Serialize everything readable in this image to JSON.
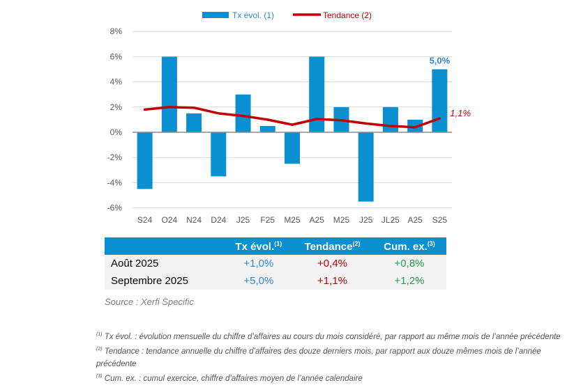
{
  "chart_data": {
    "type": "bar+line",
    "categories": [
      "S24",
      "O24",
      "N24",
      "D24",
      "J25",
      "F25",
      "M25",
      "A25",
      "M25",
      "J25",
      "JL25",
      "A25",
      "S25"
    ],
    "series": [
      {
        "name": "Tx évol. (1)",
        "type": "bar",
        "color": "#0a8fd0",
        "values": [
          -4.5,
          6,
          1.5,
          -3.5,
          3,
          0.5,
          -2.5,
          6,
          2,
          -5.5,
          2,
          1,
          5
        ]
      },
      {
        "name": "Tendance (2)",
        "type": "line",
        "color": "#c00000",
        "values": [
          1.8,
          2.0,
          1.95,
          1.5,
          1.3,
          1.0,
          0.6,
          1.05,
          0.95,
          0.7,
          0.5,
          0.4,
          1.1
        ]
      }
    ],
    "ylim": [
      -6,
      8
    ],
    "yticks": [
      "-6%",
      "-4%",
      "-2%",
      "0%",
      "2%",
      "4%",
      "6%",
      "8%"
    ],
    "grid": true,
    "legend_position": "top",
    "annotations": {
      "bar_last": "5,0%",
      "line_last": "1,1%"
    }
  },
  "table": {
    "headers": [
      "",
      "Tx évol.",
      "Tendance",
      "Cum. ex."
    ],
    "sups": [
      "(1)",
      "(2)",
      "(3)"
    ],
    "rows": [
      {
        "label": "Août 2025",
        "tx": "+1,0%",
        "tend": "+0,4%",
        "cum": "+0,8%"
      },
      {
        "label": "Septembre 2025",
        "tx": "+5,0%",
        "tend": "+1,1%",
        "cum": "+1,2%"
      }
    ]
  },
  "source": "Source : Xerfi Specific",
  "notes": [
    {
      "sup": "(1)",
      "text": " Tx évol. : évolution mensuelle du chiffre d’affaires au cours du mois considéré, par rapport au même mois de l’année précédente"
    },
    {
      "sup": "(2)",
      "text": " Tendance : tendance annuelle du chiffre d’affaires des douze derniers mois, par rapport aux douze mêmes mois de l’année précédente"
    },
    {
      "sup": "(3)",
      "text": " Cum. ex. : cumul exercice, chiffre d’affaires moyen de l’année calendaire"
    }
  ]
}
